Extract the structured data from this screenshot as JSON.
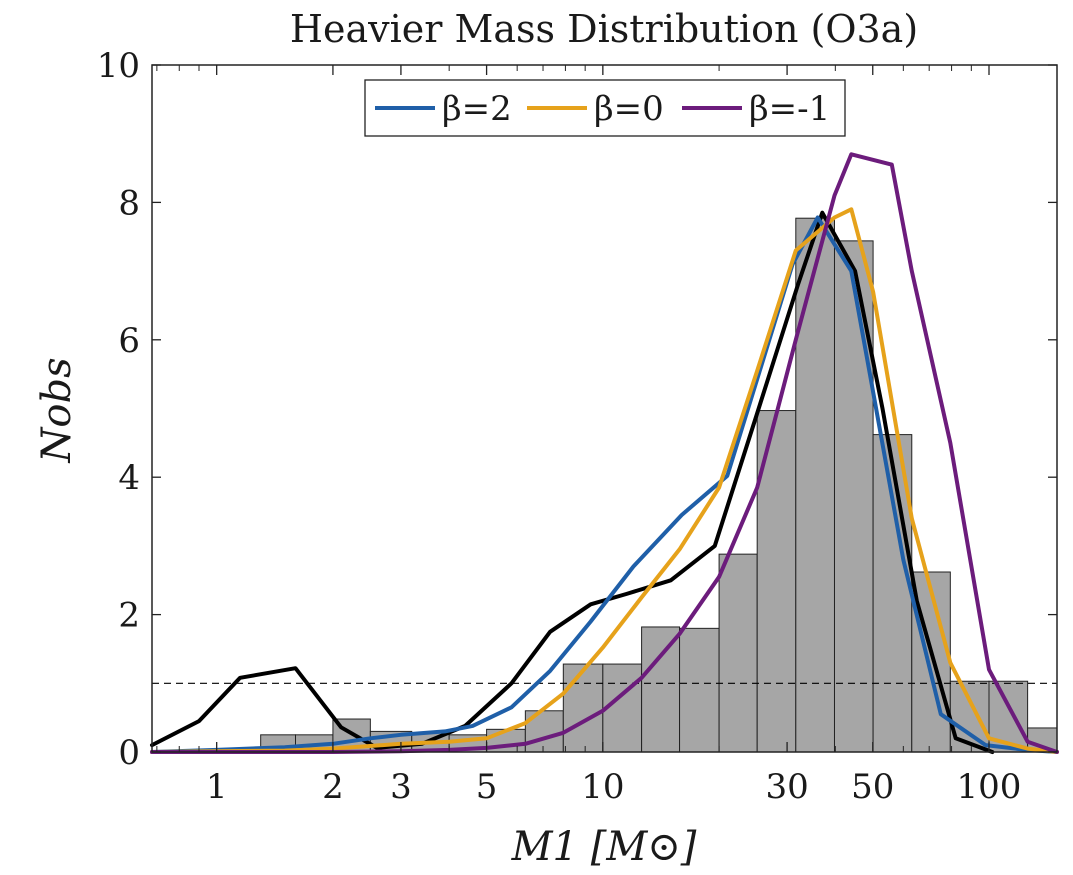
{
  "chart_data": {
    "type": "histogram-with-lines",
    "title": "Heavier Mass Distribution (O3a)",
    "xlabel": "M1 [M⊙]",
    "ylabel": "Nobs",
    "xscale": "log",
    "xlim": [
      0.68,
      150
    ],
    "ylim": [
      0,
      10
    ],
    "xticks": [
      1,
      2,
      3,
      5,
      10,
      30,
      50,
      100
    ],
    "yticks": [
      0,
      2,
      4,
      6,
      8,
      10
    ],
    "reference_line": {
      "y": 1,
      "style": "dashed"
    },
    "legend": {
      "placement": "top-center",
      "entries": [
        {
          "label": "β=2",
          "color": "#1f5fa8"
        },
        {
          "label": "β=0",
          "color": "#e6a21b"
        },
        {
          "label": "β=-1",
          "color": "#6c1c7c"
        }
      ]
    },
    "histogram": {
      "color": "#a6a6a6",
      "edge_color": "#222222",
      "bins": [
        {
          "x0": 1.3,
          "x1": 1.6,
          "value": 0.25
        },
        {
          "x0": 1.6,
          "x1": 2.0,
          "value": 0.25
        },
        {
          "x0": 2.0,
          "x1": 2.5,
          "value": 0.48
        },
        {
          "x0": 2.5,
          "x1": 3.2,
          "value": 0.3
        },
        {
          "x0": 3.2,
          "x1": 4.0,
          "value": 0.28
        },
        {
          "x0": 4.0,
          "x1": 5.0,
          "value": 0.25
        },
        {
          "x0": 5.0,
          "x1": 6.3,
          "value": 0.33
        },
        {
          "x0": 6.3,
          "x1": 7.9,
          "value": 0.6
        },
        {
          "x0": 7.9,
          "x1": 10.0,
          "value": 1.28
        },
        {
          "x0": 10.0,
          "x1": 12.6,
          "value": 1.28
        },
        {
          "x0": 12.6,
          "x1": 15.8,
          "value": 1.82
        },
        {
          "x0": 15.8,
          "x1": 20.0,
          "value": 1.8
        },
        {
          "x0": 20.0,
          "x1": 25.1,
          "value": 2.88
        },
        {
          "x0": 25.1,
          "x1": 31.6,
          "value": 4.97
        },
        {
          "x0": 31.6,
          "x1": 39.8,
          "value": 7.77
        },
        {
          "x0": 39.8,
          "x1": 50.1,
          "value": 7.44
        },
        {
          "x0": 50.1,
          "x1": 63.1,
          "value": 4.62
        },
        {
          "x0": 63.1,
          "x1": 79.4,
          "value": 2.62
        },
        {
          "x0": 79.4,
          "x1": 100.0,
          "value": 1.03
        },
        {
          "x0": 100.0,
          "x1": 125.9,
          "value": 1.03
        },
        {
          "x0": 125.9,
          "x1": 158.5,
          "value": 0.35
        }
      ]
    },
    "series": [
      {
        "name": "observed",
        "color": "#000000",
        "x": [
          0.68,
          0.9,
          1.15,
          1.6,
          2.1,
          2.6,
          3.4,
          4.4,
          5.8,
          7.3,
          9.3,
          11.5,
          15.0,
          19.5,
          25.0,
          32.0,
          37.0,
          45.0,
          53.0,
          65.0,
          82.0,
          102.0
        ],
        "y": [
          0.1,
          0.45,
          1.08,
          1.22,
          0.36,
          0.06,
          0.12,
          0.38,
          1.0,
          1.75,
          2.15,
          2.3,
          2.5,
          3.0,
          4.9,
          6.8,
          7.85,
          7.0,
          5.0,
          2.2,
          0.2,
          0.0
        ]
      },
      {
        "name": "β=2",
        "color": "#1f5fa8",
        "x": [
          0.68,
          1.0,
          1.5,
          2.0,
          2.5,
          3.0,
          3.9,
          4.6,
          5.8,
          7.3,
          9.3,
          12.0,
          16.0,
          21.0,
          25.5,
          31.0,
          36.0,
          44.0,
          51.0,
          60.0,
          75.0,
          98.0,
          125.0,
          150.0
        ],
        "y": [
          0.0,
          0.03,
          0.07,
          0.12,
          0.2,
          0.25,
          0.3,
          0.38,
          0.65,
          1.18,
          1.9,
          2.7,
          3.45,
          4.02,
          5.55,
          7.1,
          7.78,
          7.0,
          5.0,
          2.8,
          0.55,
          0.1,
          0.03,
          0.0
        ]
      },
      {
        "name": "β=0",
        "color": "#e6a21b",
        "x": [
          0.68,
          1.0,
          1.5,
          2.0,
          3.0,
          4.0,
          5.0,
          6.3,
          7.9,
          10.0,
          12.6,
          15.8,
          20.0,
          25.1,
          31.6,
          39.8,
          44.0,
          50.1,
          63.1,
          79.4,
          100.0,
          125.9,
          150.0
        ],
        "y": [
          0.0,
          0.01,
          0.02,
          0.05,
          0.12,
          0.15,
          0.2,
          0.42,
          0.85,
          1.52,
          2.25,
          2.95,
          3.85,
          5.55,
          7.3,
          7.78,
          7.9,
          6.7,
          3.4,
          1.3,
          0.2,
          0.05,
          0.0
        ]
      },
      {
        "name": "β=-1",
        "color": "#6c1c7c",
        "x": [
          0.68,
          2.0,
          3.0,
          4.0,
          5.0,
          6.3,
          7.9,
          10.0,
          12.6,
          15.8,
          20.0,
          25.1,
          31.6,
          39.8,
          44.0,
          56.0,
          63.1,
          79.4,
          100.0,
          125.9,
          150.0
        ],
        "y": [
          0.0,
          0.0,
          0.01,
          0.03,
          0.06,
          0.12,
          0.28,
          0.6,
          1.08,
          1.72,
          2.55,
          3.85,
          6.0,
          8.1,
          8.7,
          8.55,
          7.0,
          4.5,
          1.2,
          0.15,
          0.0
        ]
      }
    ]
  }
}
